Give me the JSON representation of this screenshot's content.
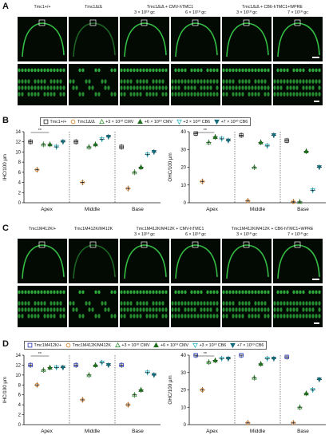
{
  "panels": [
    {
      "letter": "A",
      "headers": [
        "Tmc1+/+",
        "Tmc1Δ/Δ",
        "Tmc1Δ/Δ + CMV-hTMC1",
        "",
        "Tmc1Δ/Δ + CB6-hTMC1+WPRE",
        ""
      ],
      "doses": [
        "",
        "",
        "3 × 10¹⁰ gc",
        "6 × 10¹⁰ gc",
        "3 × 10¹⁰ gc",
        "7 × 10¹⁰ gc"
      ],
      "stain": "Myo7a"
    },
    {
      "letter": "C",
      "headers": [
        "Tmc1M412K/+",
        "Tmc1M412K/M412K",
        "Tmc1M412K/M412K + CMV-hTMC1",
        "",
        "Tmc1M412K/M412K + CB6-hTMC1+WPRE",
        ""
      ],
      "doses": [
        "",
        "",
        "3 × 10¹⁰ gc",
        "6 × 10¹⁰ gc",
        "3 × 10¹⁰ gc",
        "7 × 10¹⁰ gc"
      ],
      "stain": "Myo7a"
    }
  ],
  "legends": {
    "B": [
      "Tmc1+/+",
      "Tmc1Δ/Δ",
      "+3 × 10¹⁰ CMV",
      "+6 × 10¹⁰ CMV",
      "+3 × 10¹⁰ CB6",
      "+7 × 10¹⁰ CB6"
    ],
    "D": [
      "Tmc1M412K/+",
      "Tmc1M412K/M412K",
      "+3 × 10¹⁰ CMV",
      "+6 × 10¹⁰ CMV",
      "+3 × 10¹⁰ CB6",
      "+7 × 10¹⁰ CB6"
    ]
  },
  "colors": {
    "control_B": "#222222",
    "control_D": "#2233bb",
    "mutant": "#e07b1a",
    "cmv3": "#3a9a3a",
    "cmv6": "#1e6e1e",
    "cb6_3": "#2eb8c8",
    "cb6_7": "#166c7a",
    "tissue": "#39d04a"
  },
  "chart_data": [
    {
      "type": "scatter",
      "panel": "B",
      "ylabel": "IHC/100 µm",
      "ylim": [
        0,
        14
      ],
      "yticks": [
        0,
        2,
        4,
        6,
        8,
        10,
        12,
        14
      ],
      "categories": [
        "Apex",
        "Middle",
        "Base"
      ],
      "series": [
        {
          "name": "Tmc1+/+",
          "values": [
            12,
            12,
            11
          ]
        },
        {
          "name": "Tmc1Δ/Δ",
          "values": [
            6.5,
            4,
            2.8
          ]
        },
        {
          "name": "+3 × 10¹⁰ CMV",
          "values": [
            11.5,
            11,
            6
          ]
        },
        {
          "name": "+6 × 10¹⁰ CMV",
          "values": [
            11.5,
            11.5,
            7
          ]
        },
        {
          "name": "+3 × 10¹⁰ CB6",
          "values": [
            11,
            12.5,
            9.5
          ]
        },
        {
          "name": "+7 × 10¹⁰ CB6",
          "values": [
            12,
            13,
            10
          ]
        }
      ]
    },
    {
      "type": "scatter",
      "panel": "B",
      "ylabel": "OHC/100 µm",
      "ylim": [
        0,
        40
      ],
      "yticks": [
        0,
        10,
        20,
        30,
        40
      ],
      "categories": [
        "Apex",
        "Middle",
        "Base"
      ],
      "series": [
        {
          "name": "Tmc1+/+",
          "values": [
            39,
            38,
            35
          ]
        },
        {
          "name": "Tmc1Δ/Δ",
          "values": [
            12,
            1,
            0.5
          ]
        },
        {
          "name": "+3 × 10¹⁰ CMV",
          "values": [
            34,
            20,
            0.5
          ]
        },
        {
          "name": "+6 × 10¹⁰ CMV",
          "values": [
            37,
            34,
            29
          ]
        },
        {
          "name": "+3 × 10¹⁰ CB6",
          "values": [
            36,
            32,
            7
          ]
        },
        {
          "name": "+7 × 10¹⁰ CB6",
          "values": [
            35,
            38,
            20
          ]
        }
      ]
    },
    {
      "type": "scatter",
      "panel": "D",
      "ylabel": "IHC/100 µm",
      "ylim": [
        0,
        14
      ],
      "yticks": [
        0,
        2,
        4,
        6,
        8,
        10,
        12,
        14
      ],
      "categories": [
        "Apex",
        "Middle",
        "Base"
      ],
      "series": [
        {
          "name": "Tmc1M412K/+",
          "values": [
            12,
            12,
            12
          ]
        },
        {
          "name": "Tmc1M412K/M412K",
          "values": [
            8,
            5,
            4
          ]
        },
        {
          "name": "+3 × 10¹⁰ CMV",
          "values": [
            11,
            10,
            6
          ]
        },
        {
          "name": "+6 × 10¹⁰ CMV",
          "values": [
            11.5,
            12,
            7
          ]
        },
        {
          "name": "+3 × 10¹⁰ CB6",
          "values": [
            11.5,
            12.5,
            10.5
          ]
        },
        {
          "name": "+7 × 10¹⁰ CB6",
          "values": [
            11.5,
            12,
            10
          ]
        }
      ]
    },
    {
      "type": "scatter",
      "panel": "D",
      "ylabel": "OHC/100 µm",
      "ylim": [
        0,
        40
      ],
      "yticks": [
        0,
        10,
        20,
        30,
        40
      ],
      "categories": [
        "Apex",
        "Middle",
        "Base"
      ],
      "series": [
        {
          "name": "Tmc1M412K/+",
          "values": [
            40,
            40,
            39
          ]
        },
        {
          "name": "Tmc1M412K/M412K",
          "values": [
            20,
            1,
            1
          ]
        },
        {
          "name": "+3 × 10¹⁰ CMV",
          "values": [
            36,
            27,
            10
          ]
        },
        {
          "name": "+6 × 10¹⁰ CMV",
          "values": [
            37,
            35,
            18
          ]
        },
        {
          "name": "+3 × 10¹⁰ CB6",
          "values": [
            38,
            38,
            20
          ]
        },
        {
          "name": "+7 × 10¹⁰ CB6",
          "values": [
            38,
            38,
            26
          ]
        }
      ]
    }
  ]
}
